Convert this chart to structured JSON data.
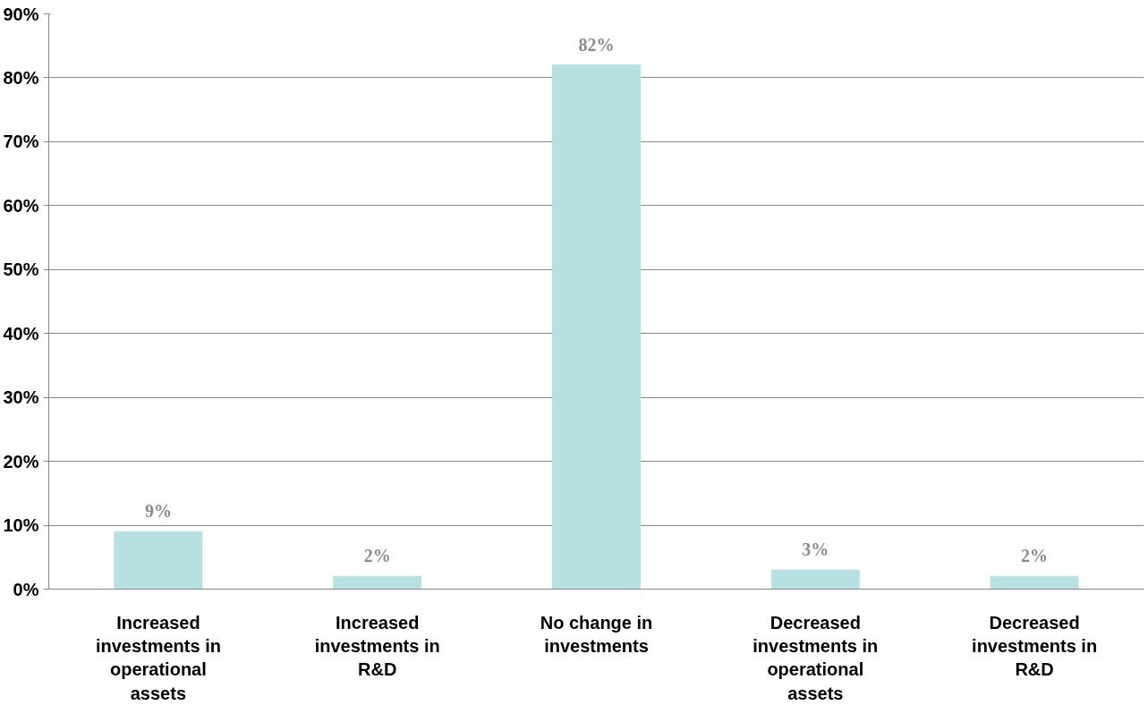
{
  "chart_data": {
    "type": "bar",
    "categories": [
      "Increased investments in operational assets",
      "Increased investments in R&D",
      "No change in investments",
      "Decreased investments in operational assets",
      "Decreased investments in R&D"
    ],
    "values": [
      9,
      2,
      82,
      3,
      2
    ],
    "color": "#b7e0e2",
    "ylim": [
      0,
      90
    ],
    "yticks": [
      {
        "value": 0,
        "label": "0%"
      },
      {
        "value": 10,
        "label": "10%"
      },
      {
        "value": 20,
        "label": "20%"
      },
      {
        "value": 30,
        "label": "30%"
      },
      {
        "value": 40,
        "label": "40%"
      },
      {
        "value": 50,
        "label": "50%"
      },
      {
        "value": 60,
        "label": "60%"
      },
      {
        "value": 70,
        "label": "70%"
      },
      {
        "value": 80,
        "label": "80%"
      },
      {
        "value": 90,
        "label": "90%"
      }
    ],
    "value_labels": [
      "9%",
      "2%",
      "82%",
      "3%",
      "2%"
    ],
    "grid": "y"
  }
}
